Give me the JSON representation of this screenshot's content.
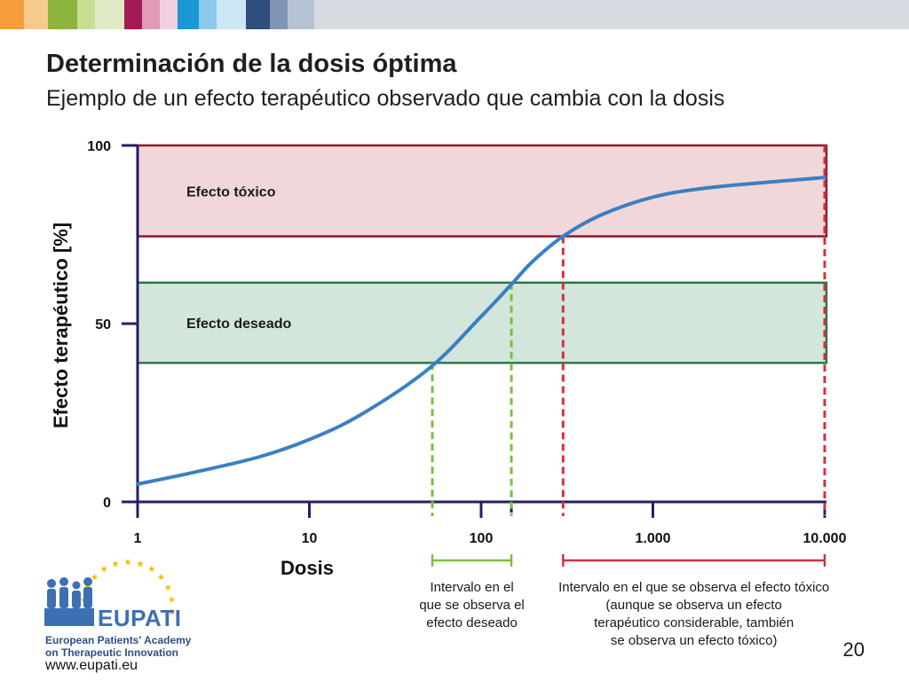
{
  "header": {
    "colors": [
      "#f39e3b",
      "#f6c98c",
      "#8db43d",
      "#c8dc92",
      "#dfe9c3",
      "#a21b57",
      "#e29ab9",
      "#f3cfe0",
      "#1b97d5",
      "#8ac8ec",
      "#cbe7f6",
      "#2f4e7d",
      "#8094b5",
      "#b6c2d6"
    ]
  },
  "slide": {
    "title": "Determinación de la dosis óptima",
    "subtitle": "Ejemplo de un efecto terapéutico observado que cambia con la dosis",
    "page_number": "20"
  },
  "chart_data": {
    "type": "line",
    "title": "",
    "xlabel": "Dosis",
    "ylabel": "Efecto terapéutico [%]",
    "x_scale": "log",
    "xlim": [
      1,
      10000
    ],
    "ylim": [
      0,
      100
    ],
    "x_ticks": [
      1,
      10,
      100,
      1000,
      10000
    ],
    "x_tick_labels": [
      "1",
      "10",
      "100",
      "1.000",
      "10.000"
    ],
    "y_ticks": [
      0,
      50,
      100
    ],
    "y_tick_labels": [
      "0",
      "50",
      "100"
    ],
    "grid": false,
    "series": [
      {
        "color": "#3b7fc4",
        "x": [
          1,
          2,
          5,
          10,
          20,
          50,
          100,
          150,
          200,
          300,
          500,
          1000,
          2000,
          5000,
          10000
        ],
        "y": [
          5,
          8,
          12.5,
          17.5,
          24.5,
          37.5,
          52,
          61,
          67.5,
          74.5,
          80.5,
          85.5,
          88,
          89.8,
          91
        ]
      }
    ],
    "bands": [
      {
        "label": "Efecto tóxico",
        "y": [
          74.5,
          100
        ],
        "fill": "#f2d7da",
        "stroke": "#8e1b2c"
      },
      {
        "label": "Efecto deseado",
        "y": [
          39,
          61.5
        ],
        "fill": "#d2e6dc",
        "stroke": "#2a7a46"
      }
    ],
    "markers": [
      {
        "x": 52,
        "y": 39,
        "color": "#7cbf42"
      },
      {
        "x": 150,
        "y": 61.5,
        "color": "#7cbf42"
      },
      {
        "x": 300,
        "y": 74.5,
        "color": "#d1313f"
      },
      {
        "x": 10000,
        "y": 100,
        "color": "#d1313f"
      }
    ],
    "ranges": [
      {
        "x": [
          52,
          150
        ],
        "color": "#7cbf42",
        "text": [
          "Intervalo en el",
          "que se observa el",
          "efecto deseado"
        ]
      },
      {
        "x": [
          300,
          10000
        ],
        "color": "#d1313f",
        "text": [
          "Intervalo en el que se observa el efecto tóxico",
          "(aunque se observa un efecto",
          "terapéutico considerable, también",
          "se observa un efecto tóxico)"
        ]
      }
    ]
  },
  "logo": {
    "name": "EUPATI",
    "tagline_1": "European Patients' Academy",
    "tagline_2": "on Therapeutic Innovation",
    "url": "www.eupati.eu"
  }
}
